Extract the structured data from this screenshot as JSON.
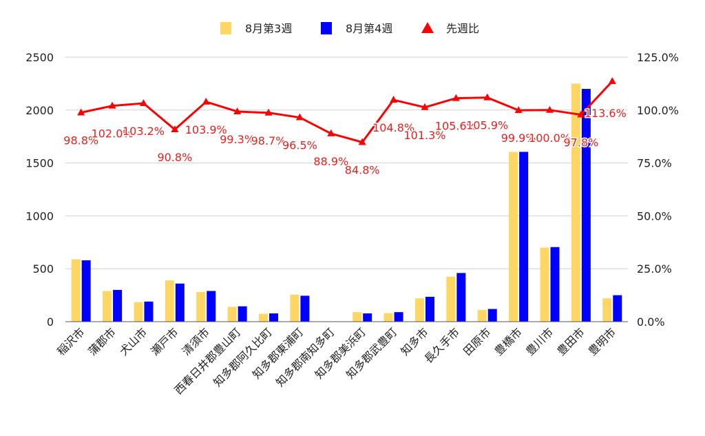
{
  "chart_data": {
    "type": "bar",
    "categories": [
      "稲沢市",
      "蒲郡市",
      "犬山市",
      "瀬戸市",
      "清須市",
      "西春日井郡豊山町",
      "知多郡阿久比町",
      "知多郡東浦町",
      "知多郡南知多町",
      "知多郡美浜町",
      "知多郡武豊町",
      "知多市",
      "長久手市",
      "田原市",
      "豊橋市",
      "豊川市",
      "豊田市",
      "豊明市"
    ],
    "series": [
      {
        "name": "8月第3週",
        "type": "bar",
        "axis": "left",
        "color": "#fdd663",
        "values": [
          590,
          290,
          185,
          390,
          280,
          140,
          75,
          255,
          0,
          90,
          80,
          220,
          425,
          110,
          1605,
          700,
          2250,
          220
        ]
      },
      {
        "name": "8月第4週",
        "type": "bar",
        "axis": "left",
        "color": "#0000ff",
        "values": [
          580,
          300,
          190,
          360,
          290,
          145,
          78,
          245,
          0,
          78,
          90,
          235,
          460,
          120,
          1605,
          705,
          2200,
          250
        ]
      },
      {
        "name": "先週比",
        "type": "line",
        "axis": "right",
        "color": "#ff0000",
        "values": [
          98.8,
          102.0,
          103.2,
          90.8,
          103.9,
          99.3,
          98.7,
          96.5,
          88.9,
          84.8,
          104.8,
          101.3,
          105.6,
          105.9,
          99.9,
          100.0,
          97.8,
          113.6
        ],
        "labels": [
          "98.8%",
          "102.0%",
          "103.2%",
          "90.8%",
          "103.9%",
          "99.3%",
          "98.7%",
          "96.5%",
          "88.9%",
          "84.8%",
          "104.8%",
          "101.3%",
          "105.6%",
          "105.9%",
          "99.9%",
          "100.0%",
          "97.8%",
          "113.6%"
        ]
      }
    ],
    "y_left": {
      "min": 0,
      "max": 2500,
      "ticks": [
        "0",
        "500",
        "1000",
        "1500",
        "2000",
        "2500"
      ]
    },
    "y_right": {
      "min": 0,
      "max": 125,
      "ticks": [
        "0.0%",
        "25.0%",
        "50.0%",
        "75.0%",
        "100.0%",
        "125.0%"
      ]
    },
    "grid": true,
    "legend_position": "top",
    "title": "",
    "xlabel": "",
    "ylabel": ""
  }
}
